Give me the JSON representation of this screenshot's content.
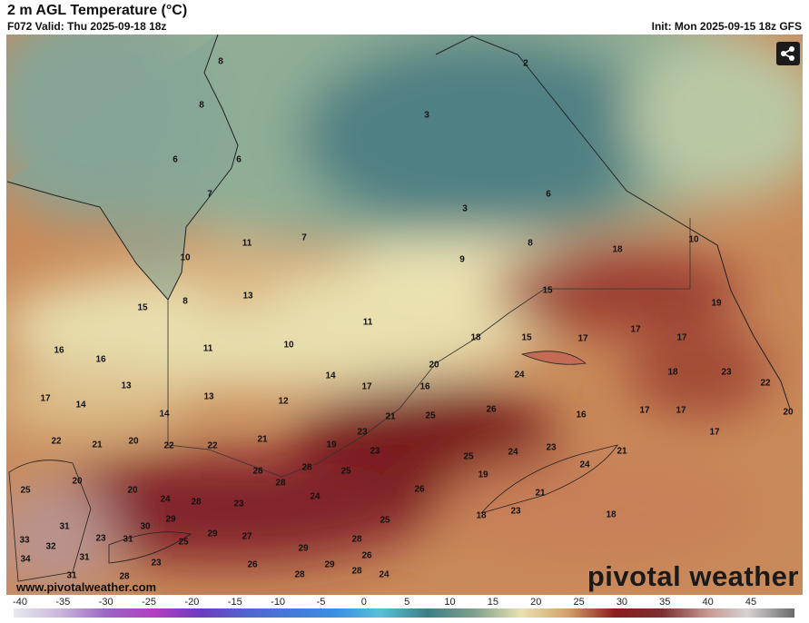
{
  "header": {
    "title": "2 m AGL Temperature (°C)",
    "valid": "F072 Valid: Thu 2025-09-18 18z",
    "init": "Init: Mon 2025-09-15 18z GFS"
  },
  "map_labels": [
    8,
    8,
    6,
    6,
    7,
    11,
    7,
    10,
    13,
    8,
    15,
    11,
    16,
    16,
    11,
    10,
    13,
    17,
    14,
    13,
    12,
    14,
    17,
    14,
    22,
    21,
    20,
    22,
    22,
    21,
    19,
    23,
    21,
    16,
    20,
    18,
    25,
    26,
    24,
    15,
    17,
    15,
    8,
    9,
    3,
    6,
    2,
    3,
    18,
    10,
    19,
    17,
    17,
    18,
    23,
    22,
    20,
    16,
    17,
    17,
    17,
    21,
    23,
    24,
    25,
    23,
    25,
    28,
    28,
    26,
    19,
    26,
    21,
    24,
    18,
    23,
    18,
    25,
    24,
    23,
    28,
    24,
    20,
    20,
    25,
    29,
    29,
    27,
    30,
    31,
    33,
    32,
    34,
    23,
    31,
    31,
    25,
    23,
    29,
    28,
    26,
    26,
    29,
    28,
    28,
    24,
    28,
    31
  ],
  "watermark": "www.pivotalweather.com",
  "logo": "pivotal weather",
  "colorbar_ticks": [
    -40,
    -35,
    -30,
    -25,
    -20,
    -15,
    -10,
    -5,
    0,
    5,
    10,
    15,
    20,
    25,
    30,
    35,
    40,
    45
  ]
}
